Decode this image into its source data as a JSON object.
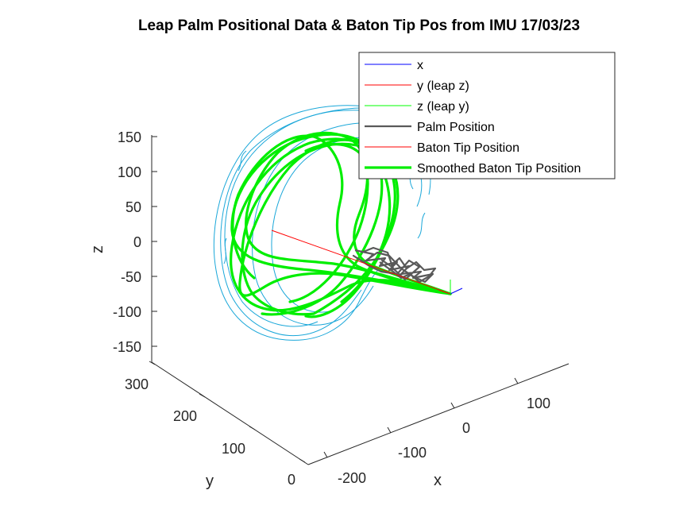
{
  "chart_data": {
    "type": "line",
    "title": "Leap Palm Positional Data & Baton Tip Pos from IMU 17/03/23",
    "xlabel": "x",
    "ylabel": "y",
    "zlabel": "z",
    "x_ticks": [
      "-200",
      "-100",
      "0",
      "100"
    ],
    "y_ticks": [
      "0",
      "100",
      "200",
      "300"
    ],
    "z_ticks": [
      "150",
      "100",
      "50",
      "0",
      "-50",
      "-100",
      "-150"
    ],
    "legend_position": "top-right",
    "legend": [
      {
        "label": "x",
        "color": "#0000ff",
        "style": "thin"
      },
      {
        "label": "y (leap z)",
        "color": "#ff0000",
        "style": "thin"
      },
      {
        "label": "z (leap y)",
        "color": "#00ff00",
        "style": "thin"
      },
      {
        "label": "Palm Position",
        "color": "#595959",
        "style": "thick"
      },
      {
        "label": "Baton Tip Position",
        "color": "#ff0000",
        "style": "thin"
      },
      {
        "label": "Smoothed Baton Tip Position",
        "color": "#00ff00",
        "style": "thick"
      }
    ],
    "series": [
      {
        "name": "Baton Tip Position (raw trace)",
        "color": "#1aa7d9",
        "description": "irregular looping trajectory around the smoothed loops"
      },
      {
        "name": "Smoothed Baton Tip Position",
        "color": "#00ff00",
        "description": "several elliptical loops converging to origin"
      },
      {
        "name": "Palm Position",
        "color": "#595959",
        "description": "small tangled cluster near origin"
      }
    ]
  }
}
